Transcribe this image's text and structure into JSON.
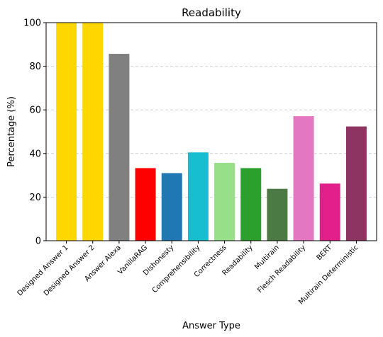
{
  "chart_data": {
    "type": "bar",
    "title": "Readability",
    "xlabel": "Answer Type",
    "ylabel": "Percentage (%)",
    "ylim": [
      0,
      100
    ],
    "yticks": [
      0,
      20,
      40,
      60,
      80,
      100
    ],
    "grid": "y-dashed",
    "categories": [
      "Designed Answer 1",
      "Designed Answer 2",
      "Answer Alexa",
      "VanillaRAG",
      "Dishonesty",
      "Comprehensibility",
      "Correctness",
      "Readability",
      "Multirain",
      "Flesch Readability",
      "BERT",
      "Multirain Deterministic"
    ],
    "values": [
      100,
      100,
      85.7,
      33.3,
      31.0,
      40.5,
      35.7,
      33.3,
      23.8,
      57.1,
      26.2,
      52.4
    ],
    "colors": [
      "#FFD700",
      "#FFD700",
      "#808080",
      "#FF0000",
      "#1F77B4",
      "#17BECF",
      "#98DF8A",
      "#2CA02C",
      "#4C7A45",
      "#E377C2",
      "#E21F8A",
      "#8E3462"
    ]
  }
}
